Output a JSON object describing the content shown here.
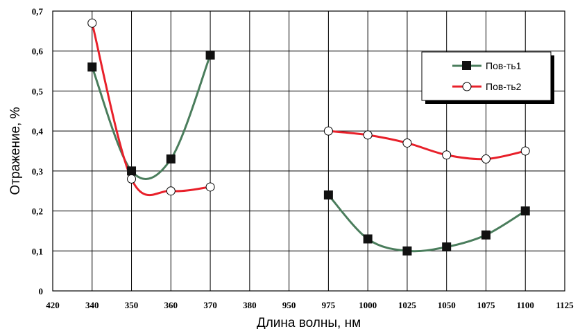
{
  "chart_data": {
    "type": "line",
    "title": "",
    "xlabel": "Длина волны, нм",
    "ylabel": "Отражение, %",
    "ylim": [
      0,
      0.7
    ],
    "y_ticks": [
      "0",
      "0,1",
      "0,2",
      "0,3",
      "0,4",
      "0,5",
      "0,6",
      "0,7"
    ],
    "x_tick_labels": [
      "420",
      "340",
      "350",
      "360",
      "370",
      "380",
      "950",
      "975",
      "1000",
      "1025",
      "1050",
      "1075",
      "1100",
      "1125"
    ],
    "grid": true,
    "legend_position": "top-right",
    "colors": {
      "series1": "#4a7d5c",
      "series2": "#e8202a",
      "frame": "#000000"
    },
    "series": [
      {
        "name": "Пов-ть1",
        "marker": "filled-square",
        "segments": [
          {
            "x": [
              340,
              350,
              360,
              370
            ],
            "y": [
              0.56,
              0.3,
              0.33,
              0.59
            ]
          },
          {
            "x": [
              975,
              1000,
              1025,
              1050,
              1075,
              1100
            ],
            "y": [
              0.24,
              0.13,
              0.1,
              0.11,
              0.14,
              0.2
            ]
          }
        ]
      },
      {
        "name": "Пов-ть2",
        "marker": "open-circle",
        "segments": [
          {
            "x": [
              340,
              350,
              360,
              370
            ],
            "y": [
              0.67,
              0.28,
              0.25,
              0.26
            ]
          },
          {
            "x": [
              975,
              1000,
              1025,
              1050,
              1075,
              1100
            ],
            "y": [
              0.4,
              0.39,
              0.37,
              0.34,
              0.33,
              0.35
            ]
          }
        ]
      }
    ]
  }
}
